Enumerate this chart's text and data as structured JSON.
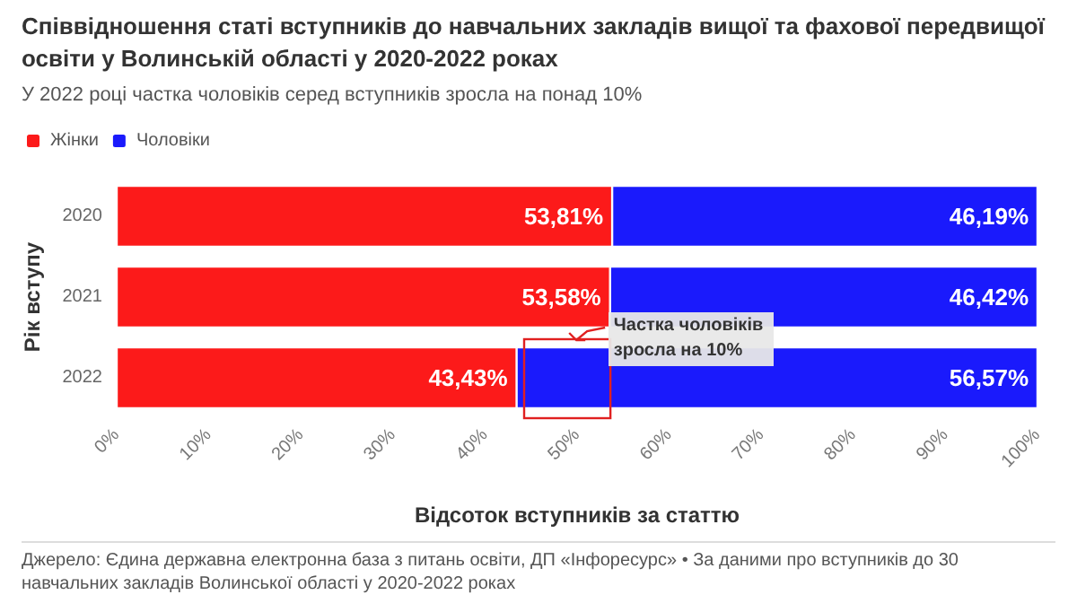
{
  "chart_data": {
    "type": "bar",
    "orientation": "horizontal",
    "stacked": true,
    "title": "Співвідношення статі вступників до навчальних закладів вищої та фахової передвищої освіти у Волинській області у 2020-2022 роках",
    "subtitle": "У 2022 році частка чоловіків серед вступників зросла на понад 10%",
    "xlabel": "Відсоток вступників за статтю",
    "ylabel": "Рік вступу",
    "categories": [
      "2020",
      "2021",
      "2022"
    ],
    "series": [
      {
        "name": "Жінки",
        "color": "#fc1a1a",
        "values": [
          53.81,
          53.58,
          43.43
        ],
        "value_labels": [
          "53,81%",
          "53,58%",
          "43,43%"
        ]
      },
      {
        "name": "Чоловіки",
        "color": "#1a1afc",
        "values": [
          46.19,
          46.42,
          56.57
        ],
        "value_labels": [
          "46,19%",
          "46,42%",
          "56,57%"
        ]
      }
    ],
    "xlim": [
      0,
      100
    ],
    "xticks": [
      {
        "value": 0,
        "label": "0%"
      },
      {
        "value": 10,
        "label": "10%"
      },
      {
        "value": 20,
        "label": "20%"
      },
      {
        "value": 30,
        "label": "30%"
      },
      {
        "value": 40,
        "label": "40%"
      },
      {
        "value": 50,
        "label": "50%"
      },
      {
        "value": 60,
        "label": "60%"
      },
      {
        "value": 70,
        "label": "70%"
      },
      {
        "value": 80,
        "label": "80%"
      },
      {
        "value": 90,
        "label": "90%"
      },
      {
        "value": 100,
        "label": "100%"
      }
    ],
    "grid": false,
    "legend": "top left",
    "annotations": [
      {
        "text": "Частка чоловіків зросла на 10%",
        "x": 53,
        "y": "2022"
      },
      "Джерело: Єдина державна електронна база з питань освіти, ДП «Інфоресурс» • За даними про вступників до 30 навчальних закладів Волинської області у 2020-2022 роках"
    ]
  }
}
